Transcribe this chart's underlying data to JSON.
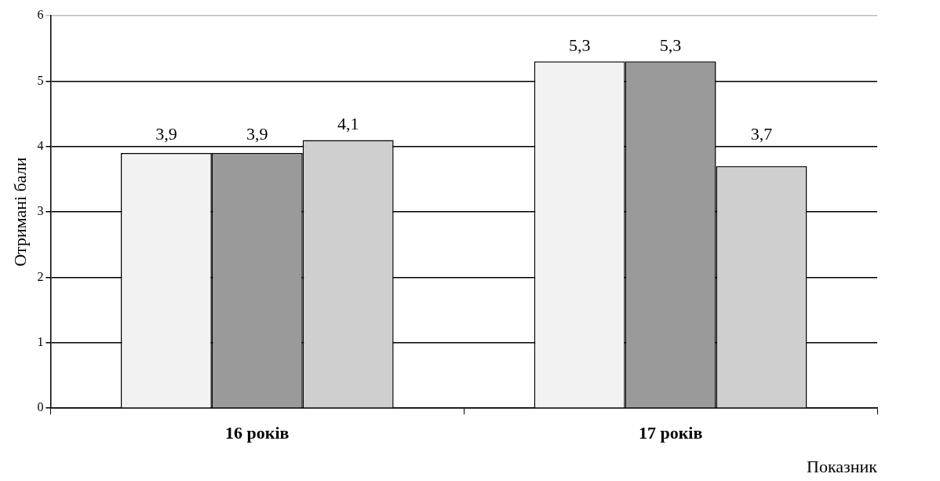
{
  "chart_data": {
    "type": "bar",
    "categories": [
      "16 років",
      "17 років"
    ],
    "series": [
      {
        "color": "#f2f2f2",
        "values": [
          3.9,
          5.3
        ],
        "value_labels": [
          "3,9",
          "5,3"
        ]
      },
      {
        "color": "#9a9a9a",
        "values": [
          3.9,
          5.3
        ],
        "value_labels": [
          "3,9",
          "5,3"
        ]
      },
      {
        "color": "#cfcfcf",
        "values": [
          4.1,
          3.7
        ],
        "value_labels": [
          "4,1",
          "3,7"
        ]
      }
    ],
    "xlabel": "Показник",
    "ylabel": "Отримані бали",
    "ylim": [
      0,
      6
    ],
    "yticks": [
      0,
      1,
      2,
      3,
      4,
      5,
      6
    ],
    "grid": "y",
    "legend": false
  }
}
